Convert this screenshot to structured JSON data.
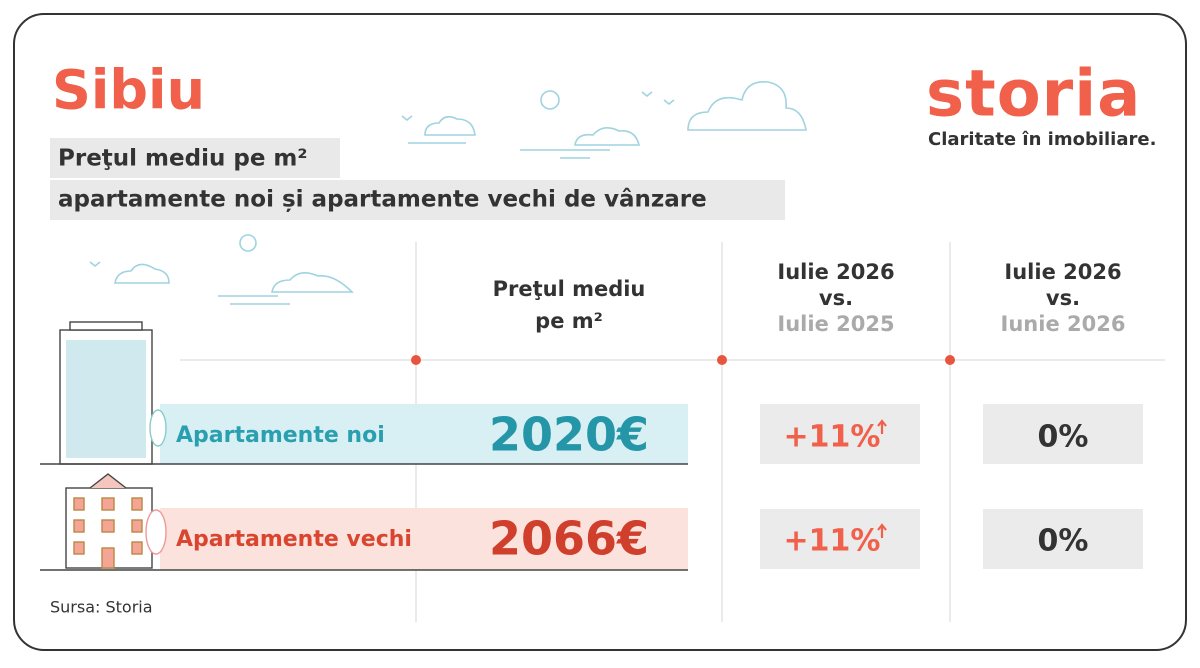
{
  "city": "Sibiu",
  "logo": {
    "name": "storia",
    "tagline": "Claritate în imobiliare."
  },
  "title": {
    "line1": "Preţul mediu pe m²",
    "line2": "apartamente noi și apartamente vechi de vânzare"
  },
  "table": {
    "headers": [
      {
        "lines": [
          "Preţul mediu",
          "pe m²"
        ]
      },
      {
        "lines": [
          "Iulie 2026",
          "vs.",
          "Iulie 2025"
        ]
      },
      {
        "lines": [
          "Iulie 2026",
          "vs.",
          "Iunie 2026"
        ]
      }
    ],
    "rows": [
      {
        "label": "Apartamente noi",
        "price": "2020€",
        "yoy": "+11%",
        "mom": "0%"
      },
      {
        "label": "Apartamente vechi",
        "price": "2066€",
        "yoy": "+11%",
        "mom": "0%"
      }
    ]
  },
  "source": "Sursa: Storia"
}
